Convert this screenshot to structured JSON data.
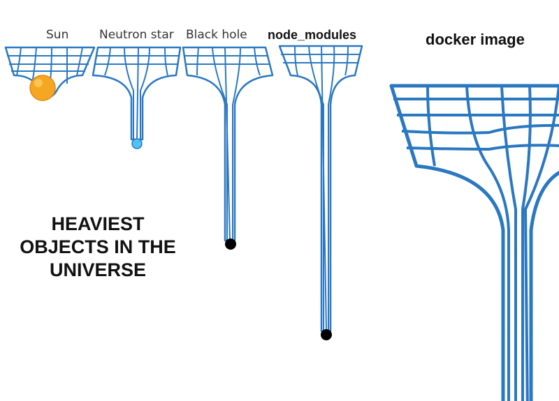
{
  "labels": {
    "sun": "Sun",
    "neutron_star": "Neutron star",
    "black_hole": "Black hole",
    "node_modules": "node_modules",
    "docker_image": "docker image"
  },
  "heading": {
    "line1": "HEAVIEST",
    "line2": "OBJECTS IN THE",
    "line3": "UNIVERSE"
  },
  "colors": {
    "grid_blue": "#2a78c2",
    "sun_orange": "#f5a623",
    "neutron_blue": "#4fc3f7",
    "singularity_black": "#000000"
  }
}
